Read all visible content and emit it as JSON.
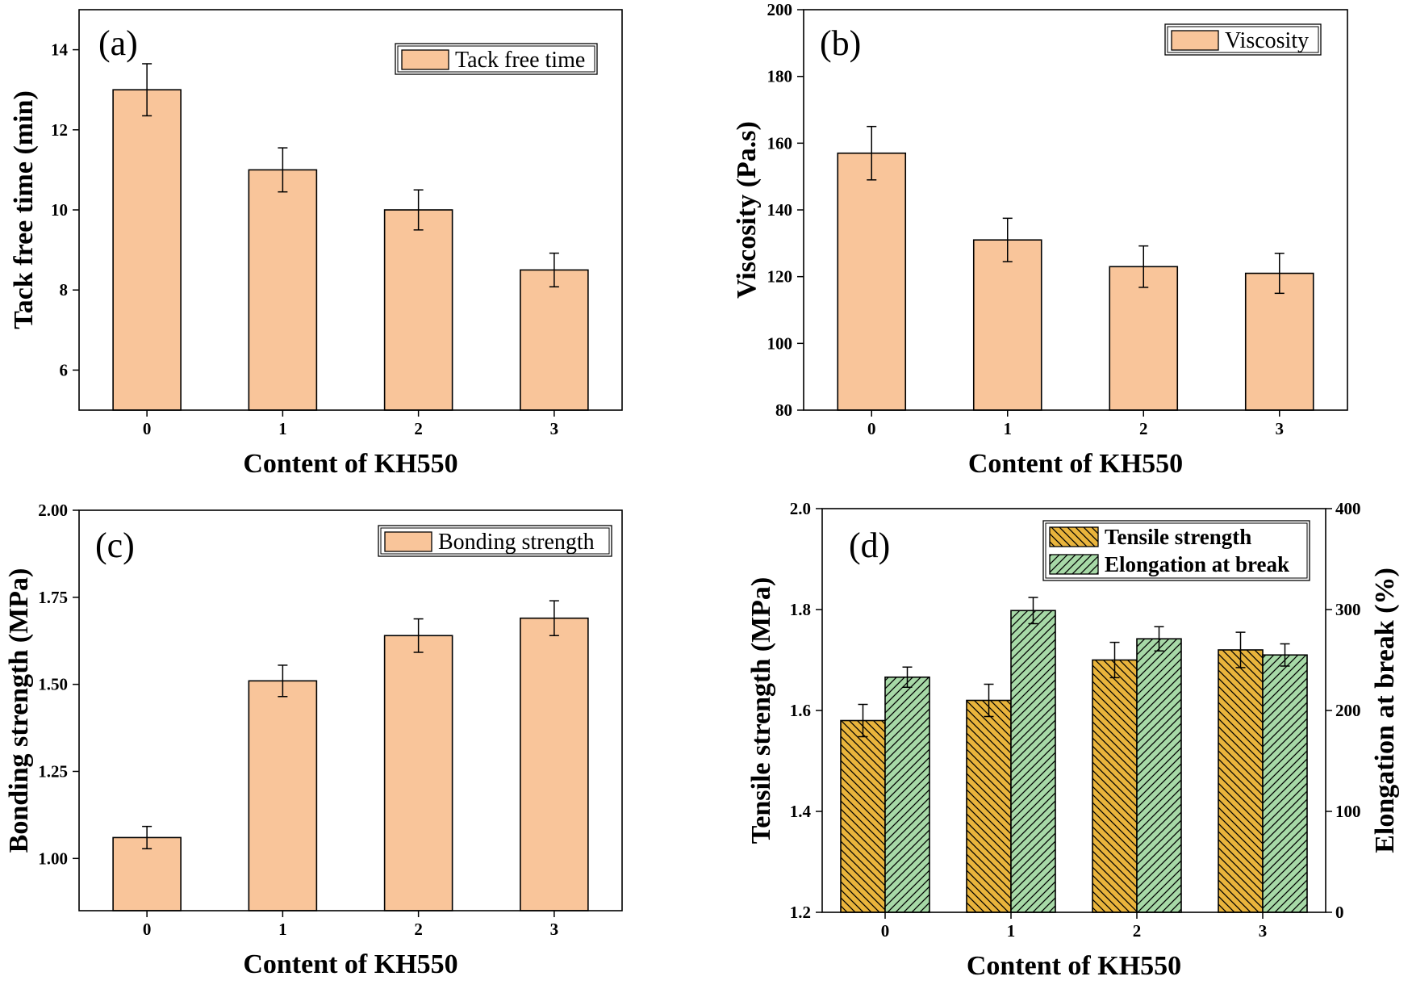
{
  "colors": {
    "bar_fill": "#f9c59a",
    "tensile_fill": "#e9b43c",
    "elongation_fill": "#a7d9a7",
    "stroke": "#000000"
  },
  "chart_data": [
    {
      "id": "a",
      "type": "bar",
      "panel_label": "(a)",
      "categories": [
        "0",
        "1",
        "2",
        "3"
      ],
      "series": [
        {
          "name": "Tack free time",
          "values": [
            13.0,
            11.0,
            10.0,
            8.5
          ],
          "errors": [
            0.65,
            0.55,
            0.5,
            0.42
          ]
        }
      ],
      "ylabel": "Tack free time (min)",
      "xlabel": "Content of KH550",
      "ylim": [
        5,
        15
      ],
      "yticks": [
        6,
        8,
        10,
        12,
        14
      ],
      "ytick_labels": [
        "6",
        "8",
        "10",
        "12",
        "14"
      ],
      "legend": "top-right"
    },
    {
      "id": "b",
      "type": "bar",
      "panel_label": "(b)",
      "categories": [
        "0",
        "1",
        "2",
        "3"
      ],
      "series": [
        {
          "name": "Viscosity",
          "values": [
            157,
            131,
            123,
            121
          ],
          "errors": [
            8,
            6.5,
            6.2,
            6
          ]
        }
      ],
      "ylabel": "Viscosity (Pa.s)",
      "xlabel": "Content of KH550",
      "ylim": [
        80,
        200
      ],
      "yticks": [
        80,
        100,
        120,
        140,
        160,
        180,
        200
      ],
      "ytick_labels": [
        "80",
        "100",
        "120",
        "140",
        "160",
        "180",
        "200"
      ],
      "legend": "top-right"
    },
    {
      "id": "c",
      "type": "bar",
      "panel_label": "(c)",
      "categories": [
        "0",
        "1",
        "2",
        "3"
      ],
      "series": [
        {
          "name": "Bonding strength",
          "values": [
            1.06,
            1.51,
            1.64,
            1.69
          ],
          "errors": [
            0.032,
            0.045,
            0.048,
            0.05
          ]
        }
      ],
      "ylabel": "Bonding strength (MPa)",
      "xlabel": "Content of KH550",
      "ylim": [
        0.85,
        2.0
      ],
      "yticks": [
        1.0,
        1.25,
        1.5,
        1.75,
        2.0
      ],
      "ytick_labels": [
        "1.00",
        "1.25",
        "1.50",
        "1.75",
        "2.00"
      ],
      "legend": "top-right"
    },
    {
      "id": "d",
      "type": "bar",
      "panel_label": "(d)",
      "categories": [
        "0",
        "1",
        "2",
        "3"
      ],
      "series": [
        {
          "name": "Tensile strength",
          "axis": "left",
          "values": [
            1.58,
            1.62,
            1.7,
            1.72
          ],
          "errors": [
            0.032,
            0.032,
            0.035,
            0.035
          ]
        },
        {
          "name": "Elongation at break",
          "axis": "right",
          "values": [
            233,
            299,
            271,
            255
          ],
          "errors": [
            10,
            13,
            12,
            11
          ]
        }
      ],
      "ylabel": "Tensile strength (MPa)",
      "y2label": "Elongation at break (%)",
      "xlabel": "Content of KH550",
      "ylim": [
        1.2,
        2.0
      ],
      "yticks": [
        1.2,
        1.4,
        1.6,
        1.8,
        2.0
      ],
      "ytick_labels": [
        "1.2",
        "1.4",
        "1.6",
        "1.8",
        "2.0"
      ],
      "y2lim": [
        0,
        400
      ],
      "y2ticks": [
        0,
        100,
        200,
        300,
        400
      ],
      "y2tick_labels": [
        "0",
        "100",
        "200",
        "300",
        "400"
      ],
      "legend": "top-right"
    }
  ]
}
